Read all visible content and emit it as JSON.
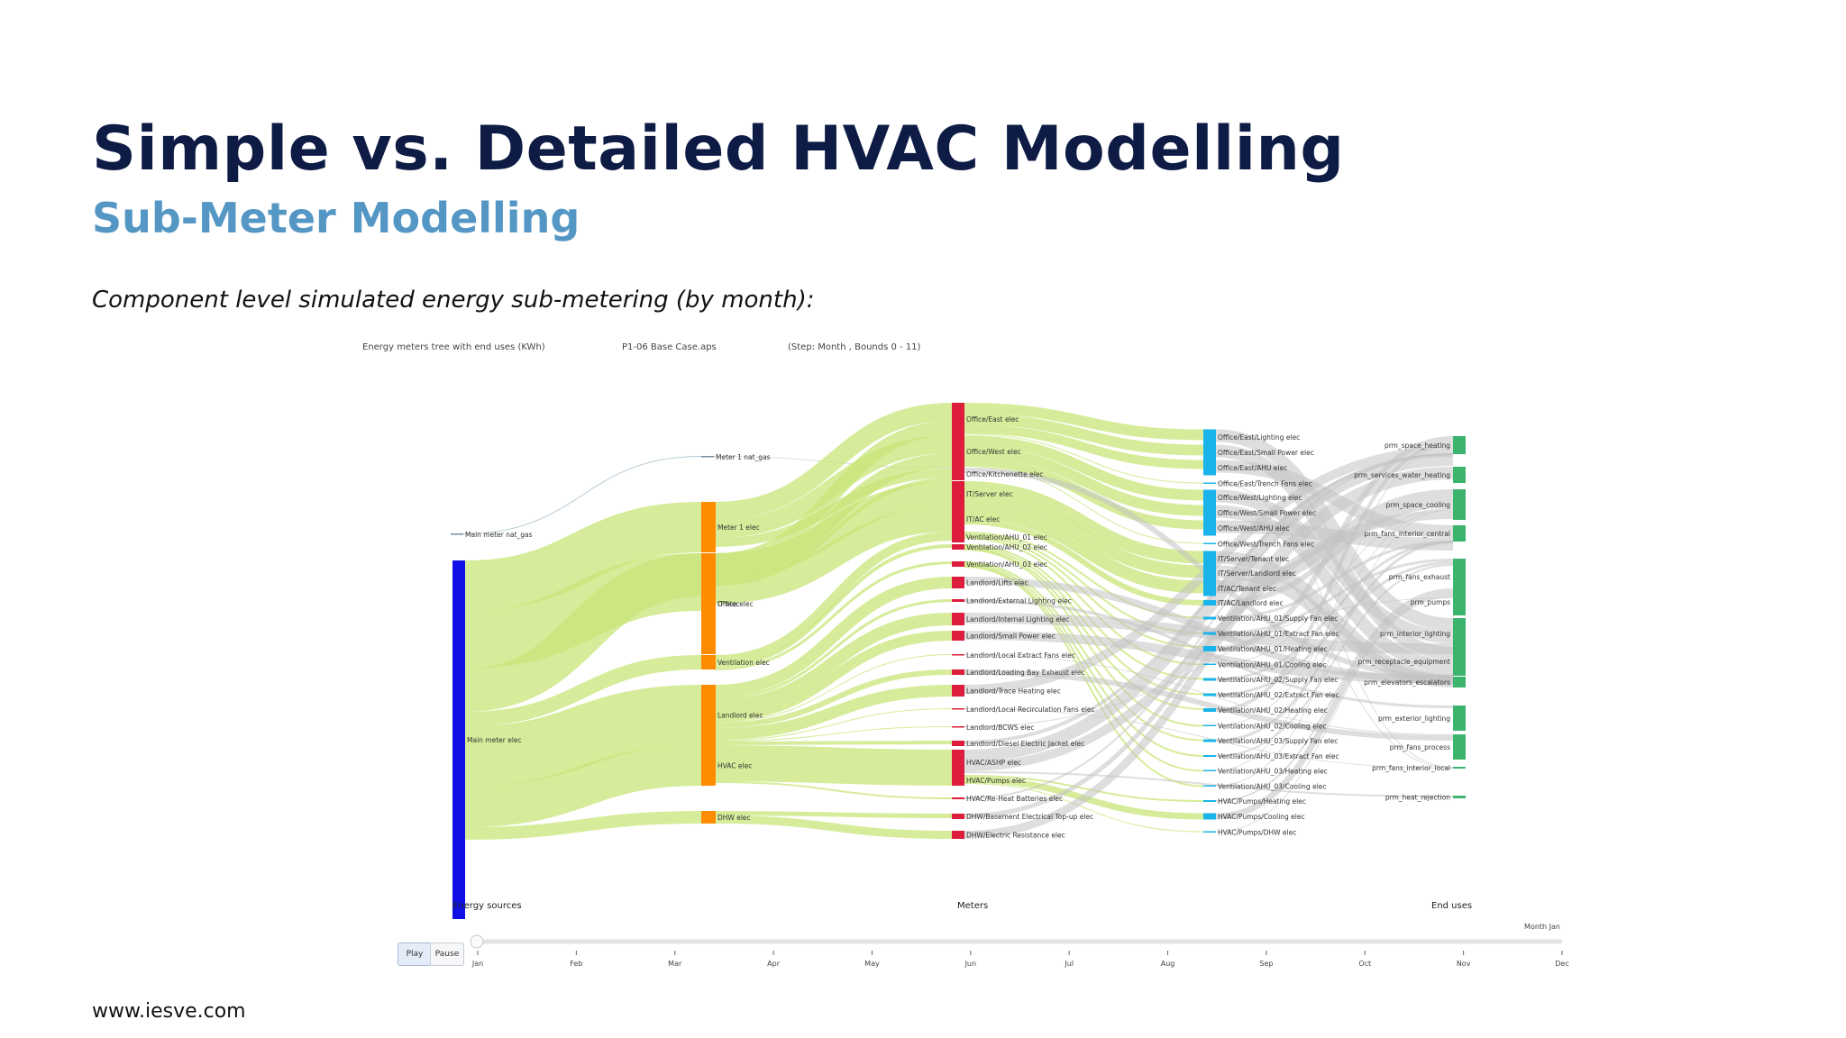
{
  "slide": {
    "title": "Simple vs. Detailed HVAC Modelling",
    "subtitle": "Sub-Meter Modelling",
    "caption": "Component level simulated energy sub-metering (by month):",
    "footer": "www.iesve.com"
  },
  "figure_header": {
    "left": "Energy meters tree with end uses (KWh)",
    "center": "P1-06 Base Case.aps",
    "right": "(Step: Month , Bounds 0 - 11)"
  },
  "colors": {
    "source_main": "#1010e6",
    "source_gas": "#7a8aa0",
    "meter_orange": "#ff8c00",
    "meter_red": "#dc1e3c",
    "submeter_blue": "#1ab4ea",
    "enduse_green": "#3cb46e",
    "link_green": "#c8e678",
    "link_grey": "#c3c3c3",
    "link_gas": "#9fb8c8"
  },
  "chart_data": {
    "type": "sankey",
    "units": "KWh",
    "columns": [
      "Energy sources",
      "Meters",
      "End uses"
    ],
    "nodes": [
      {
        "id": "main_gas",
        "label": "Main meter nat_gas",
        "color": "source_gas"
      },
      {
        "id": "main_elec",
        "label": "Main meter elec",
        "color": "source_main"
      },
      {
        "id": "meter1_gas",
        "label": "Meter 1 nat_gas",
        "color": "source_gas"
      },
      {
        "id": "meter1_elec",
        "label": "Meter 1 elec",
        "color": "meter_orange"
      },
      {
        "id": "office",
        "label": "Office elec",
        "color": "meter_orange"
      },
      {
        "id": "it",
        "label": "IT elec",
        "color": "meter_orange"
      },
      {
        "id": "vent",
        "label": "Ventilation elec",
        "color": "meter_orange"
      },
      {
        "id": "landlord",
        "label": "Landlord elec",
        "color": "meter_orange"
      },
      {
        "id": "hvac",
        "label": "HVAC elec",
        "color": "meter_orange"
      },
      {
        "id": "dhw",
        "label": "DHW elec",
        "color": "meter_orange"
      },
      {
        "id": "office_east",
        "label": "Office/East elec",
        "color": "meter_red"
      },
      {
        "id": "office_west",
        "label": "Office/West elec",
        "color": "meter_red"
      },
      {
        "id": "office_kitchen",
        "label": "Office/Kitchenette elec",
        "color": "meter_red"
      },
      {
        "id": "it_server",
        "label": "IT/Server elec",
        "color": "meter_red"
      },
      {
        "id": "it_ac",
        "label": "IT/AC elec",
        "color": "meter_red"
      },
      {
        "id": "vent_ahu01",
        "label": "Ventilation/AHU_01 elec",
        "color": "meter_red"
      },
      {
        "id": "vent_ahu02",
        "label": "Ventilation/AHU_02 elec",
        "color": "meter_red"
      },
      {
        "id": "vent_ahu03",
        "label": "Ventilation/AHU_03 elec",
        "color": "meter_red"
      },
      {
        "id": "ll_lifts",
        "label": "Landlord/Lifts elec",
        "color": "meter_red"
      },
      {
        "id": "ll_extlight",
        "label": "Landlord/External Lighting elec",
        "color": "meter_red"
      },
      {
        "id": "ll_intlight",
        "label": "Landlord/Internal Lighting elec",
        "color": "meter_red"
      },
      {
        "id": "ll_smallpower",
        "label": "Landlord/Small Power elec",
        "color": "meter_red"
      },
      {
        "id": "ll_localextract",
        "label": "Landlord/Local Extract Fans elec",
        "color": "meter_red"
      },
      {
        "id": "ll_loadingbay",
        "label": "Landlord/Loading Bay Exhaust elec",
        "color": "meter_red"
      },
      {
        "id": "ll_trace",
        "label": "Landlord/Trace Heating elec",
        "color": "meter_red"
      },
      {
        "id": "ll_localrecirc",
        "label": "Landlord/Local Recirculation Fans elec",
        "color": "meter_red"
      },
      {
        "id": "ll_bcws",
        "label": "Landlord/BCWS elec",
        "color": "meter_red"
      },
      {
        "id": "ll_diesel",
        "label": "Landlord/Diesel Electric Jacket elec",
        "color": "meter_red"
      },
      {
        "id": "hvac_ashp",
        "label": "HVAC/ASHP elec",
        "color": "meter_red"
      },
      {
        "id": "hvac_pumps",
        "label": "HVAC/Pumps elec",
        "color": "meter_red"
      },
      {
        "id": "hvac_reheat",
        "label": "HVAC/Re-Heat Batteries elec",
        "color": "meter_red"
      },
      {
        "id": "dhw_basement",
        "label": "DHW/Basement Electrical Top-up elec",
        "color": "meter_red"
      },
      {
        "id": "dhw_resist",
        "label": "DHW/Electric Resistance elec",
        "color": "meter_red"
      },
      {
        "id": "oe_light",
        "label": "Office/East/Lighting elec",
        "color": "submeter_blue"
      },
      {
        "id": "oe_small",
        "label": "Office/East/Small Power elec",
        "color": "submeter_blue"
      },
      {
        "id": "oe_ahu",
        "label": "Office/East/AHU elec",
        "color": "submeter_blue"
      },
      {
        "id": "oe_trench",
        "label": "Office/East/Trench Fans elec",
        "color": "submeter_blue"
      },
      {
        "id": "ow_light",
        "label": "Office/West/Lighting elec",
        "color": "submeter_blue"
      },
      {
        "id": "ow_small",
        "label": "Office/West/Small Power elec",
        "color": "submeter_blue"
      },
      {
        "id": "ow_ahu",
        "label": "Office/West/AHU elec",
        "color": "submeter_blue"
      },
      {
        "id": "ow_trench",
        "label": "Office/West/Trench Fans elec",
        "color": "submeter_blue"
      },
      {
        "id": "its_tenant",
        "label": "IT/Server/Tenant elec",
        "color": "submeter_blue"
      },
      {
        "id": "its_landlord",
        "label": "IT/Server/Landlord elec",
        "color": "submeter_blue"
      },
      {
        "id": "itac_tenant",
        "label": "IT/AC/Tenant elec",
        "color": "submeter_blue"
      },
      {
        "id": "itac_landlord",
        "label": "IT/AC/Landlord elec",
        "color": "submeter_blue"
      },
      {
        "id": "a01_supply",
        "label": "Ventilation/AHU_01/Supply Fan elec",
        "color": "submeter_blue"
      },
      {
        "id": "a01_extract",
        "label": "Ventilation/AHU_01/Extract Fan elec",
        "color": "submeter_blue"
      },
      {
        "id": "a01_heat",
        "label": "Ventilation/AHU_01/Heating elec",
        "color": "submeter_blue"
      },
      {
        "id": "a01_cool",
        "label": "Ventilation/AHU_01/Cooling elec",
        "color": "submeter_blue"
      },
      {
        "id": "a02_supply",
        "label": "Ventilation/AHU_02/Supply Fan elec",
        "color": "submeter_blue"
      },
      {
        "id": "a02_extract",
        "label": "Ventilation/AHU_02/Extract Fan elec",
        "color": "submeter_blue"
      },
      {
        "id": "a02_heat",
        "label": "Ventilation/AHU_02/Heating elec",
        "color": "submeter_blue"
      },
      {
        "id": "a02_cool",
        "label": "Ventilation/AHU_02/Cooling elec",
        "color": "submeter_blue"
      },
      {
        "id": "a03_supply",
        "label": "Ventilation/AHU_03/Supply Fan elec",
        "color": "submeter_blue"
      },
      {
        "id": "a03_extract",
        "label": "Ventilation/AHU_03/Extract Fan elec",
        "color": "submeter_blue"
      },
      {
        "id": "a03_heat",
        "label": "Ventilation/AHU_03/Heating elec",
        "color": "submeter_blue"
      },
      {
        "id": "a03_cool",
        "label": "Ventilation/AHU_03/Cooling elec",
        "color": "submeter_blue"
      },
      {
        "id": "hp_heat",
        "label": "HVAC/Pumps/Heating elec",
        "color": "submeter_blue"
      },
      {
        "id": "hp_cool",
        "label": "HVAC/Pumps/Cooling elec",
        "color": "submeter_blue"
      },
      {
        "id": "hp_dhw",
        "label": "HVAC/Pumps/DHW elec",
        "color": "submeter_blue"
      },
      {
        "id": "eu_space_heating",
        "label": "prm_space_heating",
        "color": "enduse_green"
      },
      {
        "id": "eu_services_water",
        "label": "prm_services_water_heating",
        "color": "enduse_green"
      },
      {
        "id": "eu_space_cooling",
        "label": "prm_space_cooling",
        "color": "enduse_green"
      },
      {
        "id": "eu_fans_central",
        "label": "prm_fans_interior_central",
        "color": "enduse_green"
      },
      {
        "id": "eu_fans_exhaust",
        "label": "prm_fans_exhaust",
        "color": "enduse_green"
      },
      {
        "id": "eu_pumps",
        "label": "prm_pumps",
        "color": "enduse_green"
      },
      {
        "id": "eu_int_light",
        "label": "prm_interior_lighting",
        "color": "enduse_green"
      },
      {
        "id": "eu_receptacle",
        "label": "prm_receptacle_equipment",
        "color": "enduse_green"
      },
      {
        "id": "eu_elevators",
        "label": "prm_elevators_escalators",
        "color": "enduse_green"
      },
      {
        "id": "eu_ext_light",
        "label": "prm_exterior_lighting",
        "color": "enduse_green"
      },
      {
        "id": "eu_fans_process",
        "label": "prm_fans_process",
        "color": "enduse_green"
      },
      {
        "id": "eu_fans_local",
        "label": "prm_fans_interior_local",
        "color": "enduse_green"
      },
      {
        "id": "eu_heat_reject",
        "label": "prm_heat_rejection",
        "color": "enduse_green"
      }
    ]
  },
  "slider": {
    "buttons": [
      "Play",
      "Pause"
    ],
    "current_label": "Month Jan",
    "months": [
      "Jan",
      "Feb",
      "Mar",
      "Apr",
      "May",
      "Jun",
      "Jul",
      "Aug",
      "Sep",
      "Oct",
      "Nov",
      "Dec"
    ],
    "value_index": 0
  }
}
